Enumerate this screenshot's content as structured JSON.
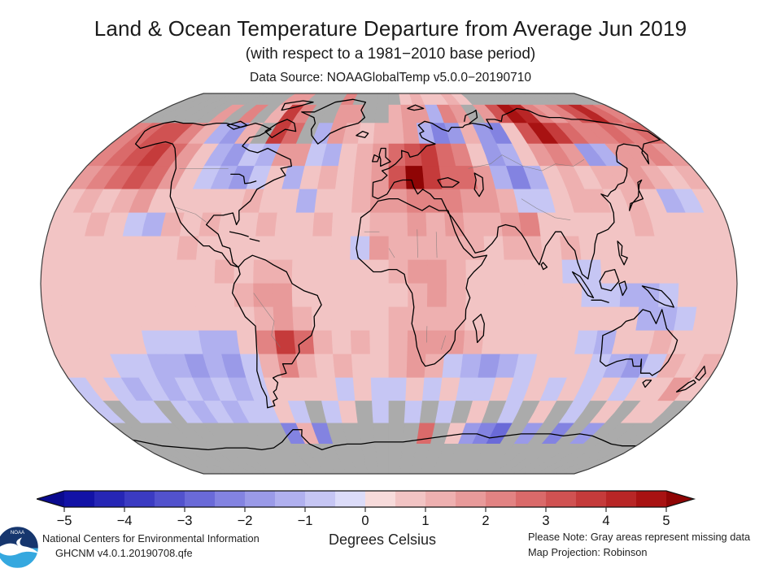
{
  "header": {
    "title": "Land & Ocean Temperature Departure from Average Jun 2019",
    "subtitle": "(with respect to a 1981−2010 base period)",
    "data_source": "Data Source: NOAAGlobalTemp v5.0.0−20190710"
  },
  "footer": {
    "org_line1": "National Centers for Environmental Information",
    "org_line2": "GHCNM v4.0.1.20190708.qfe",
    "units_label": "Degrees Celsius",
    "note_line1": "Please Note: Gray areas represent missing data",
    "note_line2": "Map Projection: Robinson",
    "logo_text": "NOAA"
  },
  "colorbar": {
    "min": -5,
    "max": 5,
    "step": 0.5,
    "tick_labels": [
      "−5",
      "−4",
      "−3",
      "−2",
      "−1",
      "0",
      "1",
      "2",
      "3",
      "4",
      "5"
    ],
    "segment_colors": [
      "#1212a6",
      "#2626b5",
      "#3b3bc2",
      "#5252cd",
      "#6a6ad8",
      "#8383e1",
      "#9a9ae8",
      "#b0b0ef",
      "#c6c6f4",
      "#dcdcf9",
      "#f7dbdb",
      "#f2c4c4",
      "#eeb0b0",
      "#e89a9a",
      "#e28383",
      "#da6a6a",
      "#d05252",
      "#c53b3b",
      "#b82626",
      "#a81212"
    ],
    "under_color": "#0a0a8f",
    "over_color": "#8f0505",
    "missing_color": "#ababab"
  },
  "chart_data": {
    "type": "heatmap",
    "title": "Land & Ocean Temperature Departure from Average Jun 2019",
    "legend_label": "Degrees Celsius",
    "units": "degC anomaly vs 1981-2010",
    "projection": "Robinson",
    "missing_value_meaning": "gray = missing data",
    "value_range": [
      -5,
      5
    ],
    "grid": {
      "lon_start": -180,
      "lon_step": 10,
      "lat_start": 90,
      "lat_step": -10,
      "cols": 36,
      "rows": 18,
      "values": [
        [
          null,
          null,
          null,
          null,
          null,
          null,
          null,
          null,
          null,
          1.5,
          1.5,
          null,
          null,
          null,
          2,
          null,
          null,
          null,
          null,
          0.5,
          1,
          0.5,
          0.5,
          1,
          0.5,
          null,
          null,
          null,
          null,
          null,
          null,
          null,
          null,
          null,
          null,
          null
        ],
        [
          null,
          null,
          null,
          null,
          null,
          1.5,
          null,
          2,
          null,
          1,
          3.5,
          2,
          null,
          null,
          1.5,
          1.5,
          null,
          null,
          1,
          1.5,
          1.5,
          -1,
          2,
          1.5,
          null,
          1.5,
          3,
          4.5,
          4,
          2,
          1.5,
          2,
          3,
          4,
          2.5,
          2
        ],
        [
          2,
          2.5,
          3,
          3,
          2,
          1,
          -1,
          -1.5,
          1,
          null,
          3.5,
          2.5,
          null,
          -1,
          1.5,
          1,
          0.5,
          1,
          1,
          1.5,
          -1,
          -2,
          -1.5,
          1,
          -1.5,
          -2,
          0.5,
          3,
          4.5,
          3.5,
          2.5,
          2,
          2,
          2.5,
          2,
          2.5
        ],
        [
          2,
          2.5,
          3,
          3.5,
          2.5,
          1.5,
          0.5,
          -1,
          -1.5,
          -0.5,
          -1,
          1.5,
          1.5,
          -0.5,
          -1,
          0.5,
          1,
          1.5,
          2.5,
          3,
          3.5,
          2.5,
          2,
          0.5,
          -1.5,
          -1,
          0.5,
          1.5,
          2,
          1.5,
          -1.5,
          -1,
          1.5,
          1.5,
          2,
          1.5
        ],
        [
          1.5,
          2,
          2.5,
          3,
          2.5,
          1.5,
          0.5,
          -0.5,
          -1,
          -1.5,
          -0.5,
          0.5,
          -1,
          0.5,
          1,
          0.5,
          1,
          1.5,
          3,
          5,
          3.5,
          2.5,
          2.5,
          1.5,
          -1,
          -2,
          -1,
          0.5,
          1,
          0.5,
          1,
          1,
          1.5,
          1,
          0.5,
          1
        ],
        [
          0.5,
          1,
          0.5,
          1,
          1.5,
          0.5,
          0.5,
          0.5,
          0.5,
          0.5,
          1,
          0.5,
          0.5,
          -1,
          0.5,
          0.5,
          1,
          1.5,
          1.5,
          2,
          2,
          2,
          1.5,
          1.5,
          1,
          -0.5,
          -0.5,
          0.5,
          1,
          1,
          0.5,
          1,
          0.5,
          -1,
          -0.5,
          0.5
        ],
        [
          0.5,
          0.5,
          1,
          0.5,
          -0.5,
          -1,
          1,
          0.5,
          1,
          0.5,
          0.5,
          1,
          0.5,
          0.5,
          1,
          0.5,
          0.5,
          1,
          1,
          1.5,
          1,
          1.5,
          1,
          1,
          1.5,
          2,
          0.5,
          0.5,
          0.5,
          0.5,
          0.5,
          1,
          0.5,
          0.5,
          0.5,
          0.5
        ],
        [
          0.5,
          0.5,
          0.5,
          0.5,
          0.5,
          0.5,
          0.5,
          1,
          0.5,
          0.5,
          0.5,
          0.5,
          0.5,
          0.5,
          0.5,
          0.5,
          -0.5,
          1.5,
          1,
          1,
          1,
          1,
          1,
          0.5,
          1,
          1,
          0.5,
          1,
          0.5,
          0.5,
          0.5,
          0.5,
          0.5,
          0.5,
          0.5,
          0.5
        ],
        [
          0.5,
          0.5,
          0.5,
          0.5,
          0.5,
          0.5,
          0.5,
          0.5,
          0.5,
          1,
          0.5,
          1,
          1,
          0.5,
          0.5,
          0.5,
          0.5,
          0.5,
          1,
          1.5,
          1.5,
          1,
          0.5,
          0.5,
          0.5,
          0.5,
          0.5,
          -0.5,
          -0.5,
          0.5,
          0.5,
          0.5,
          0.5,
          0.5,
          0.5,
          0.5
        ],
        [
          0.5,
          0.5,
          0.5,
          0.5,
          0.5,
          0.5,
          0.5,
          0.5,
          0.5,
          0.5,
          1,
          1.5,
          1.5,
          0.5,
          0.5,
          0.5,
          0.5,
          0.5,
          0.5,
          1,
          1.5,
          1,
          0.5,
          0.5,
          0.5,
          0.5,
          0.5,
          0.5,
          -0.5,
          -0.5,
          -1,
          -1,
          -0.5,
          0.5,
          0.5,
          0.5
        ],
        [
          0.5,
          0.5,
          0.5,
          0.5,
          0.5,
          0.5,
          0.5,
          0.5,
          0.5,
          0.5,
          0.5,
          1,
          1.5,
          1,
          0.5,
          0.5,
          0.5,
          0.5,
          1,
          1,
          1,
          1,
          0.5,
          0.5,
          0.5,
          0.5,
          0.5,
          0.5,
          0.5,
          0.5,
          0.5,
          -1,
          -1,
          -0.5,
          0.5,
          0.5
        ],
        [
          0.5,
          0.5,
          0.5,
          0.5,
          0.5,
          -0.5,
          -0.5,
          -0.5,
          -1,
          -1,
          0.5,
          2,
          3.5,
          2.5,
          1,
          0.5,
          1,
          0.5,
          1,
          1.5,
          1.5,
          1.5,
          1,
          0.5,
          0.5,
          0.5,
          0.5,
          0.5,
          -0.5,
          -1,
          0.5,
          0.5,
          1,
          0.5,
          0.5,
          0.5
        ],
        [
          0.5,
          0.5,
          0.5,
          -0.5,
          -0.5,
          -1,
          -1,
          -1.5,
          -1,
          -1.5,
          -0.5,
          1,
          2,
          1,
          0.5,
          1,
          0.5,
          0.5,
          1,
          1.5,
          1,
          -0.5,
          -1,
          -1.5,
          -1,
          -0.5,
          0.5,
          0.5,
          0.5,
          -0.5,
          -1,
          -1.5,
          -0.5,
          1,
          0.5,
          1
        ],
        [
          -0.5,
          0.5,
          -0.5,
          -1,
          -0.5,
          -1,
          -0.5,
          -1,
          -0.5,
          -1,
          -0.5,
          0.5,
          0.5,
          0.5,
          0.5,
          -0.5,
          0.5,
          -0.5,
          -0.5,
          0.5,
          -0.5,
          0.5,
          -0.5,
          -0.5,
          0.5,
          -0.5,
          0.5,
          -0.5,
          0.5,
          -0.5,
          0.5,
          -0.5,
          0.5,
          0.5,
          1.5,
          0.5
        ],
        [
          -0.5,
          null,
          -0.5,
          -0.5,
          null,
          -0.5,
          -1,
          -0.5,
          -1,
          -0.5,
          -0.5,
          0.5,
          -0.5,
          null,
          -0.5,
          0.5,
          null,
          -0.5,
          null,
          -0.5,
          null,
          -0.5,
          null,
          0.5,
          null,
          -0.5,
          null,
          0.5,
          null,
          -0.5,
          null,
          0.5,
          null,
          0.5,
          0.5,
          null
        ],
        [
          null,
          null,
          null,
          null,
          null,
          null,
          null,
          null,
          null,
          null,
          null,
          -2,
          1,
          -2,
          null,
          null,
          null,
          null,
          null,
          null,
          2.5,
          null,
          0.5,
          -1.5,
          -2,
          -2.5,
          null,
          -1.5,
          null,
          -2,
          null,
          -1.5,
          null,
          null,
          null,
          null
        ],
        [
          null,
          null,
          null,
          null,
          null,
          null,
          null,
          null,
          null,
          null,
          null,
          null,
          null,
          null,
          null,
          null,
          null,
          null,
          null,
          null,
          null,
          null,
          null,
          null,
          null,
          null,
          null,
          null,
          null,
          null,
          null,
          null,
          null,
          null,
          null,
          null
        ],
        [
          null,
          null,
          null,
          null,
          null,
          null,
          null,
          null,
          null,
          null,
          null,
          null,
          null,
          null,
          null,
          null,
          null,
          null,
          null,
          null,
          null,
          null,
          null,
          null,
          null,
          null,
          null,
          null,
          null,
          null,
          null,
          null,
          null,
          null,
          null,
          null
        ]
      ]
    }
  }
}
